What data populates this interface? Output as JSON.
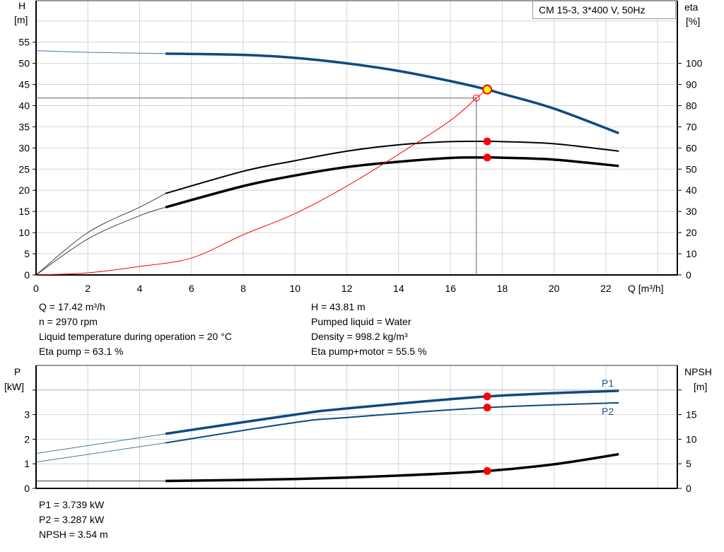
{
  "legend_title": "CM 15-3, 3*400 V, 50Hz",
  "readout": {
    "left": [
      "Q = 17.42 m³/h",
      "n = 2970 rpm",
      "Liquid temperature during operation = 20 °C",
      "Eta pump = 63.1 %"
    ],
    "right": [
      "H = 43.81 m",
      "Pumped liquid = Water",
      "Density = 998.2 kg/m³",
      "Eta pump+motor = 55.5 %"
    ],
    "bottom": [
      "P1 = 3.739 kW",
      "P2 = 3.287 kW",
      "NPSH = 3.54 m"
    ]
  },
  "colors": {
    "blue": "#0d4a82",
    "black": "#000000",
    "red": "#ff0000",
    "marker_fill": "#ffff00",
    "grid": "#d4d4d4"
  },
  "chart_data": [
    {
      "type": "line",
      "ylabel": "H",
      "yunit": "[m]",
      "y2label": "eta",
      "y2unit": "[%]",
      "xlabel": "Q [m³/h]",
      "xlim": [
        0,
        24.76
      ],
      "ylim": [
        0,
        64.8
      ],
      "y2lim": [
        0,
        129.6
      ],
      "x_ticks": [
        0,
        2,
        4,
        6,
        8,
        10,
        12,
        14,
        16,
        18,
        20,
        22
      ],
      "y_ticks": [
        0,
        5,
        10,
        15,
        20,
        25,
        30,
        35,
        40,
        45,
        50,
        55
      ],
      "y2_ticks": [
        0,
        10,
        20,
        30,
        40,
        50,
        60,
        70,
        80,
        90,
        100
      ],
      "grid": true,
      "operating_point": {
        "Q": 17.42,
        "H": 43.81,
        "eta_pump": 63.1,
        "eta_pump_motor": 55.5
      },
      "reference_point": {
        "Q": 17.0,
        "H": 41.8
      },
      "series": [
        {
          "id": "H",
          "axis": "left",
          "color": "#0d4a82",
          "thin_until": 5,
          "x": [
            0,
            2,
            4,
            5,
            8,
            10,
            12,
            14,
            16,
            17.42,
            18,
            20,
            22.5
          ],
          "y": [
            53,
            52.6,
            52.4,
            52.3,
            52,
            51.3,
            50,
            48.2,
            45.8,
            43.81,
            42.8,
            39.3,
            33.5
          ]
        },
        {
          "id": "eta_pump",
          "axis": "right",
          "color": "#000000",
          "thin_until": 5,
          "x": [
            0,
            2,
            4,
            5,
            8,
            10,
            12,
            14,
            16,
            17.42,
            18,
            20,
            22.5
          ],
          "y": [
            0,
            20,
            32,
            38.5,
            49,
            54,
            58.5,
            61.5,
            63,
            63.1,
            63,
            62,
            58.5
          ]
        },
        {
          "id": "eta_pump_motor",
          "axis": "right",
          "color": "#000000",
          "thin_until": 5,
          "x": [
            0,
            2,
            4,
            5,
            8,
            10,
            12,
            14,
            16,
            17.42,
            18,
            20,
            22.5
          ],
          "y": [
            0,
            17,
            28,
            32,
            42,
            47,
            51,
            53.5,
            55.3,
            55.5,
            55.4,
            54.5,
            51.5
          ]
        },
        {
          "id": "system",
          "axis": "left",
          "color": "#ff0000",
          "thin_until": 99,
          "x": [
            0,
            2,
            4,
            6,
            8,
            10,
            12,
            14,
            16,
            17,
            17.42
          ],
          "y": [
            0,
            0.5,
            2,
            4,
            9.5,
            14.5,
            21,
            28.5,
            36.5,
            41.8,
            43.81
          ]
        }
      ]
    },
    {
      "type": "line",
      "ylabel": "P",
      "yunit": "[kW]",
      "y2label": "NPSH",
      "y2unit": "[m]",
      "xlim": [
        0,
        24.76
      ],
      "ylim": [
        0,
        5
      ],
      "y2lim": [
        0,
        25
      ],
      "y_ticks": [
        0,
        1,
        2,
        3,
        4
      ],
      "y_tick_labels": [
        "0",
        "1",
        "2",
        "3",
        ""
      ],
      "y2_ticks": [
        0,
        5,
        10,
        15,
        20
      ],
      "y2_tick_labels": [
        "0",
        "5",
        "10",
        "15",
        ""
      ],
      "grid": true,
      "operating_point": {
        "Q": 17.42,
        "P1": 3.739,
        "P2": 3.287,
        "NPSH": 3.54
      },
      "series": [
        {
          "id": "P1",
          "name": "P1",
          "axis": "left",
          "color": "#0d4a82",
          "thin_until": 5,
          "x": [
            0,
            5,
            10,
            12,
            17.42,
            22.5
          ],
          "y": [
            1.42,
            2.22,
            3.0,
            3.25,
            3.739,
            3.97
          ]
        },
        {
          "id": "P2",
          "name": "P2",
          "axis": "left",
          "color": "#0d4a82",
          "thin_until": 5,
          "x": [
            0,
            5,
            10,
            12,
            17.42,
            22.5
          ],
          "y": [
            1.07,
            1.85,
            2.68,
            2.88,
            3.287,
            3.48
          ]
        },
        {
          "id": "NPSH",
          "axis": "right",
          "color": "#000000",
          "thin_until": 5,
          "x": [
            0,
            5,
            10,
            14,
            17.42,
            20,
            22.5
          ],
          "y": [
            1.5,
            1.5,
            1.9,
            2.6,
            3.54,
            4.9,
            6.95
          ]
        }
      ]
    }
  ]
}
